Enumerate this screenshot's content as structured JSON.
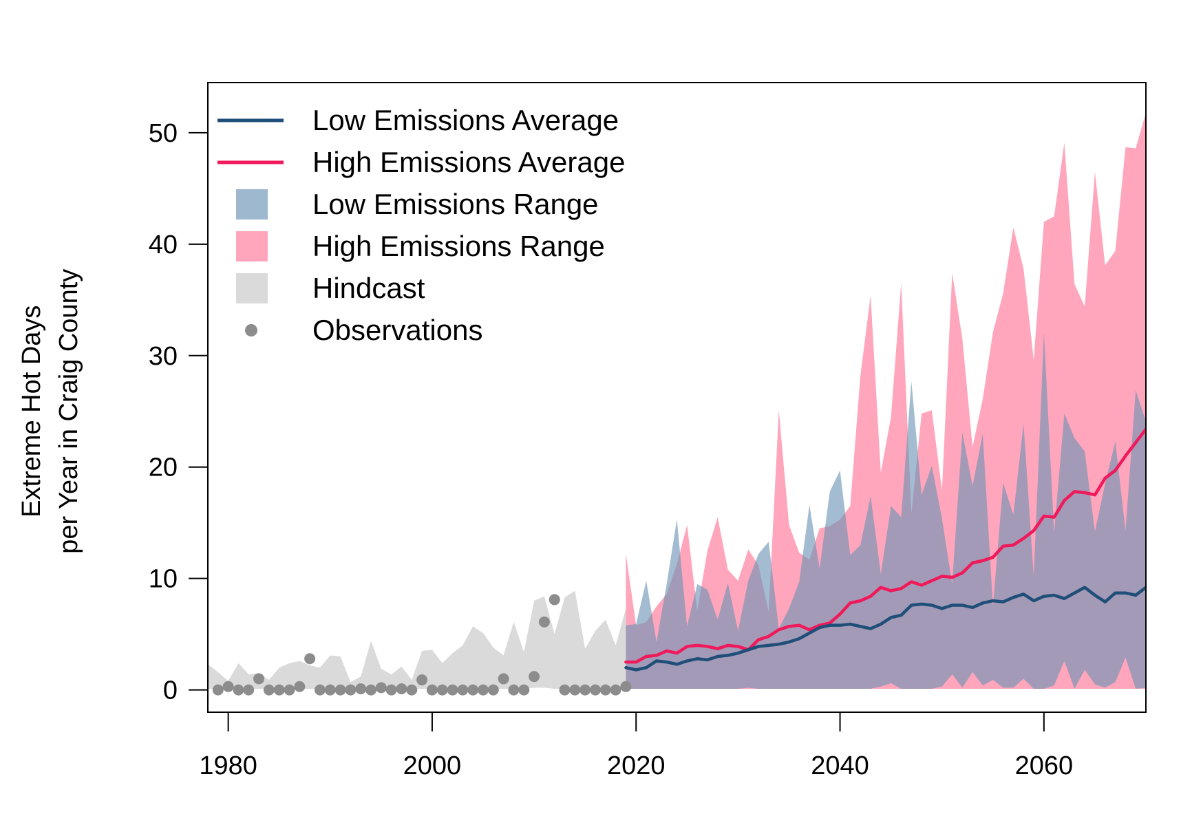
{
  "colors": {
    "low_avg": "#1f4e79",
    "high_avg": "#f0195a",
    "low_range": "#6a93b5",
    "high_range": "#ff84a2",
    "hindcast": "#dadada",
    "observations": "#8c8c8c"
  },
  "chart_data": {
    "type": "line",
    "title": "",
    "xlabel": "",
    "ylabel_lines": [
      "Extreme Hot Days",
      "per Year in Craig County"
    ],
    "xlim": [
      1978,
      2070
    ],
    "ylim": [
      -2,
      54.5
    ],
    "x_ticks": [
      1980,
      2000,
      2020,
      2040,
      2060
    ],
    "y_ticks": [
      0,
      10,
      20,
      30,
      40,
      50
    ],
    "grid": false,
    "legend_position": "top-left",
    "legend": [
      {
        "label": "Low Emissions Average",
        "kind": "line",
        "color_key": "low_avg"
      },
      {
        "label": "High Emissions Average",
        "kind": "line",
        "color_key": "high_avg"
      },
      {
        "label": "Low Emissions Range",
        "kind": "box",
        "color_key": "low_range"
      },
      {
        "label": "High Emissions Range",
        "kind": "box",
        "color_key": "high_range"
      },
      {
        "label": "Hindcast",
        "kind": "box",
        "color_key": "hindcast"
      },
      {
        "label": "Observations",
        "kind": "point",
        "color_key": "observations"
      }
    ],
    "hindcast": {
      "x": [
        1978,
        1979,
        1980,
        1981,
        1982,
        1983,
        1984,
        1985,
        1986,
        1987,
        1988,
        1989,
        1990,
        1991,
        1992,
        1993,
        1994,
        1995,
        1996,
        1997,
        1998,
        1999,
        2000,
        2001,
        2002,
        2003,
        2004,
        2005,
        2006,
        2007,
        2008,
        2009,
        2010,
        2011,
        2012,
        2013,
        2014,
        2015,
        2016,
        2017,
        2018,
        2019
      ],
      "upper": [
        2.3,
        1.6,
        0.8,
        2.4,
        1.4,
        1.5,
        0.9,
        2.0,
        2.4,
        2.6,
        2.2,
        2.0,
        3.1,
        3.0,
        0.7,
        1.2,
        4.4,
        1.9,
        1.4,
        2.1,
        0.9,
        3.5,
        3.6,
        2.4,
        3.3,
        4.0,
        5.7,
        5.1,
        3.8,
        3.1,
        6.1,
        3.4,
        8.0,
        8.4,
        5.0,
        8.3,
        8.9,
        3.7,
        5.3,
        6.3,
        4.0,
        7.3
      ],
      "lower": [
        0.1,
        0.1,
        0.1,
        0.1,
        0.1,
        0.1,
        0.1,
        0.1,
        0.1,
        0.1,
        0.1,
        0.1,
        0.1,
        0.1,
        0.1,
        0.1,
        0.1,
        0.1,
        0.1,
        0.1,
        0.1,
        0.1,
        0.1,
        0.1,
        0.1,
        0.1,
        0.1,
        0.1,
        0.1,
        0.1,
        0.1,
        0.1,
        0.2,
        0.2,
        0.1,
        0.1,
        0.2,
        0.1,
        0.1,
        0.1,
        0.1,
        0.1
      ]
    },
    "observations": {
      "x": [
        1979,
        1980,
        1981,
        1982,
        1983,
        1984,
        1985,
        1986,
        1987,
        1988,
        1989,
        1990,
        1991,
        1992,
        1993,
        1994,
        1995,
        1996,
        1997,
        1998,
        1999,
        2000,
        2001,
        2002,
        2003,
        2004,
        2005,
        2006,
        2007,
        2008,
        2009,
        2010,
        2011,
        2012,
        2013,
        2014,
        2015,
        2016,
        2017,
        2018,
        2019
      ],
      "y": [
        0,
        0.3,
        0,
        0,
        1.0,
        0,
        0,
        0,
        0.3,
        2.8,
        0,
        0,
        0,
        0,
        0.1,
        0,
        0.2,
        0,
        0.1,
        0,
        0.9,
        0,
        0,
        0,
        0,
        0,
        0,
        0,
        1.0,
        0,
        0,
        1.2,
        6.1,
        8.1,
        0,
        0,
        0,
        0,
        0,
        0,
        0.3
      ]
    },
    "series": [
      {
        "name": "Low Emissions Range",
        "role": "band",
        "color_key": "low_range",
        "x": [
          2019,
          2020,
          2021,
          2022,
          2023,
          2024,
          2025,
          2026,
          2027,
          2028,
          2029,
          2030,
          2031,
          2032,
          2033,
          2034,
          2035,
          2036,
          2037,
          2038,
          2039,
          2040,
          2041,
          2042,
          2043,
          2044,
          2045,
          2046,
          2047,
          2048,
          2049,
          2050,
          2051,
          2052,
          2053,
          2054,
          2055,
          2056,
          2057,
          2058,
          2059,
          2060,
          2061,
          2062,
          2063,
          2064,
          2065,
          2066,
          2067,
          2068,
          2069,
          2070
        ],
        "upper": [
          5.8,
          5.9,
          9.8,
          4.3,
          9.5,
          15.3,
          5.7,
          9.5,
          9.0,
          6.3,
          9.6,
          5.3,
          9.8,
          12.2,
          13.3,
          5.5,
          7.3,
          9.7,
          16.6,
          10.9,
          17.8,
          19.7,
          12.1,
          13.0,
          17.4,
          10.4,
          16.5,
          15.5,
          27.7,
          17.5,
          20.1,
          15.4,
          9.5,
          23.1,
          18.3,
          23.0,
          7.5,
          18.6,
          15.7,
          23.9,
          10.2,
          32.1,
          14.1,
          24.8,
          22.6,
          21.4,
          14.2,
          18.5,
          22.3,
          14.3,
          26.9,
          24.1
        ],
        "lower": [
          0.1,
          0.1,
          0.1,
          0.1,
          0.1,
          0.1,
          0.1,
          0.1,
          0.1,
          0.1,
          0.1,
          0.1,
          0.2,
          0.1,
          0.1,
          0.1,
          0.1,
          0.1,
          0.1,
          0.1,
          0.1,
          0.1,
          0.1,
          0.1,
          0.1,
          0.3,
          0.6,
          0.1,
          0.1,
          0.1,
          0.1,
          0.3,
          1.4,
          0.2,
          1.6,
          0.4,
          0.9,
          0.2,
          0.2,
          1.0,
          0.1,
          0.1,
          0.4,
          2.6,
          0.1,
          1.8,
          0.5,
          0.2,
          0.7,
          2.9,
          0.1,
          0.2
        ]
      },
      {
        "name": "High Emissions Range",
        "role": "band",
        "color_key": "high_range",
        "x": [
          2019,
          2020,
          2021,
          2022,
          2023,
          2024,
          2025,
          2026,
          2027,
          2028,
          2029,
          2030,
          2031,
          2032,
          2033,
          2034,
          2035,
          2036,
          2037,
          2038,
          2039,
          2040,
          2041,
          2042,
          2043,
          2044,
          2045,
          2046,
          2047,
          2048,
          2049,
          2050,
          2051,
          2052,
          2053,
          2054,
          2055,
          2056,
          2057,
          2058,
          2059,
          2060,
          2061,
          2062,
          2063,
          2064,
          2065,
          2066,
          2067,
          2068,
          2069,
          2070
        ],
        "upper": [
          12.2,
          5.8,
          6.1,
          7.5,
          8.6,
          11.3,
          14.8,
          7.1,
          12.5,
          15.5,
          10.8,
          9.8,
          12.6,
          11.2,
          7.0,
          25.1,
          14.8,
          12.3,
          11.7,
          14.5,
          14.7,
          15.3,
          16.5,
          28.2,
          35.4,
          19.5,
          24.5,
          36.5,
          15.8,
          24.8,
          25.1,
          17.9,
          37.4,
          31.5,
          21.8,
          26.1,
          32.1,
          35.6,
          41.5,
          37.8,
          29.6,
          42.0,
          42.5,
          49.1,
          36.4,
          34.4,
          46.5,
          38.1,
          39.4,
          48.7,
          48.6,
          51.8
        ],
        "lower": [
          0.1,
          0.1,
          0.1,
          0.1,
          0.1,
          0.1,
          0.1,
          0.1,
          0.1,
          0.1,
          0.1,
          0.1,
          0.1,
          0.1,
          0.1,
          0.1,
          0.1,
          0.1,
          0.1,
          0.1,
          0.1,
          0.1,
          0.1,
          0.1,
          0.1,
          0.1,
          0.1,
          0.1,
          0.1,
          0.1,
          0.1,
          0.1,
          0.1,
          0.1,
          0.1,
          0.1,
          0.1,
          0.1,
          0.1,
          0.1,
          0.1,
          0.1,
          0.1,
          0.1,
          0.1,
          0.1,
          0.1,
          0.1,
          0.1,
          0.1,
          0.1,
          0.1
        ]
      },
      {
        "name": "Low Emissions Average",
        "role": "line",
        "color_key": "low_avg",
        "x": [
          2019,
          2020,
          2021,
          2022,
          2023,
          2024,
          2025,
          2026,
          2027,
          2028,
          2029,
          2030,
          2031,
          2032,
          2033,
          2034,
          2035,
          2036,
          2037,
          2038,
          2039,
          2040,
          2041,
          2042,
          2043,
          2044,
          2045,
          2046,
          2047,
          2048,
          2049,
          2050,
          2051,
          2052,
          2053,
          2054,
          2055,
          2056,
          2057,
          2058,
          2059,
          2060,
          2061,
          2062,
          2063,
          2064,
          2065,
          2066,
          2067,
          2068,
          2069,
          2070
        ],
        "values": [
          2.0,
          1.8,
          2.0,
          2.6,
          2.5,
          2.3,
          2.6,
          2.8,
          2.7,
          3.0,
          3.1,
          3.3,
          3.6,
          3.9,
          4.0,
          4.1,
          4.3,
          4.6,
          5.1,
          5.6,
          5.8,
          5.8,
          5.9,
          5.7,
          5.5,
          5.9,
          6.5,
          6.7,
          7.6,
          7.7,
          7.6,
          7.3,
          7.6,
          7.6,
          7.4,
          7.8,
          8.0,
          7.9,
          8.3,
          8.6,
          8.0,
          8.4,
          8.5,
          8.2,
          8.7,
          9.2,
          8.5,
          7.9,
          8.7,
          8.7,
          8.5,
          9.2
        ]
      },
      {
        "name": "High Emissions Average",
        "role": "line",
        "color_key": "high_avg",
        "x": [
          2019,
          2020,
          2021,
          2022,
          2023,
          2024,
          2025,
          2026,
          2027,
          2028,
          2029,
          2030,
          2031,
          2032,
          2033,
          2034,
          2035,
          2036,
          2037,
          2038,
          2039,
          2040,
          2041,
          2042,
          2043,
          2044,
          2045,
          2046,
          2047,
          2048,
          2049,
          2050,
          2051,
          2052,
          2053,
          2054,
          2055,
          2056,
          2057,
          2058,
          2059,
          2060,
          2061,
          2062,
          2063,
          2064,
          2065,
          2066,
          2067,
          2068,
          2069,
          2070
        ],
        "values": [
          2.5,
          2.5,
          3.0,
          3.1,
          3.5,
          3.3,
          3.9,
          4.0,
          3.9,
          3.7,
          4.0,
          3.9,
          3.6,
          4.5,
          4.8,
          5.4,
          5.7,
          5.8,
          5.4,
          5.8,
          6.0,
          6.8,
          7.8,
          8.0,
          8.4,
          9.2,
          8.9,
          9.1,
          9.7,
          9.4,
          9.8,
          10.2,
          10.1,
          10.5,
          11.4,
          11.6,
          11.9,
          12.9,
          13.0,
          13.6,
          14.3,
          15.6,
          15.5,
          17.0,
          17.8,
          17.7,
          17.5,
          19.0,
          19.7,
          21.0,
          22.2,
          23.4
        ]
      }
    ]
  }
}
